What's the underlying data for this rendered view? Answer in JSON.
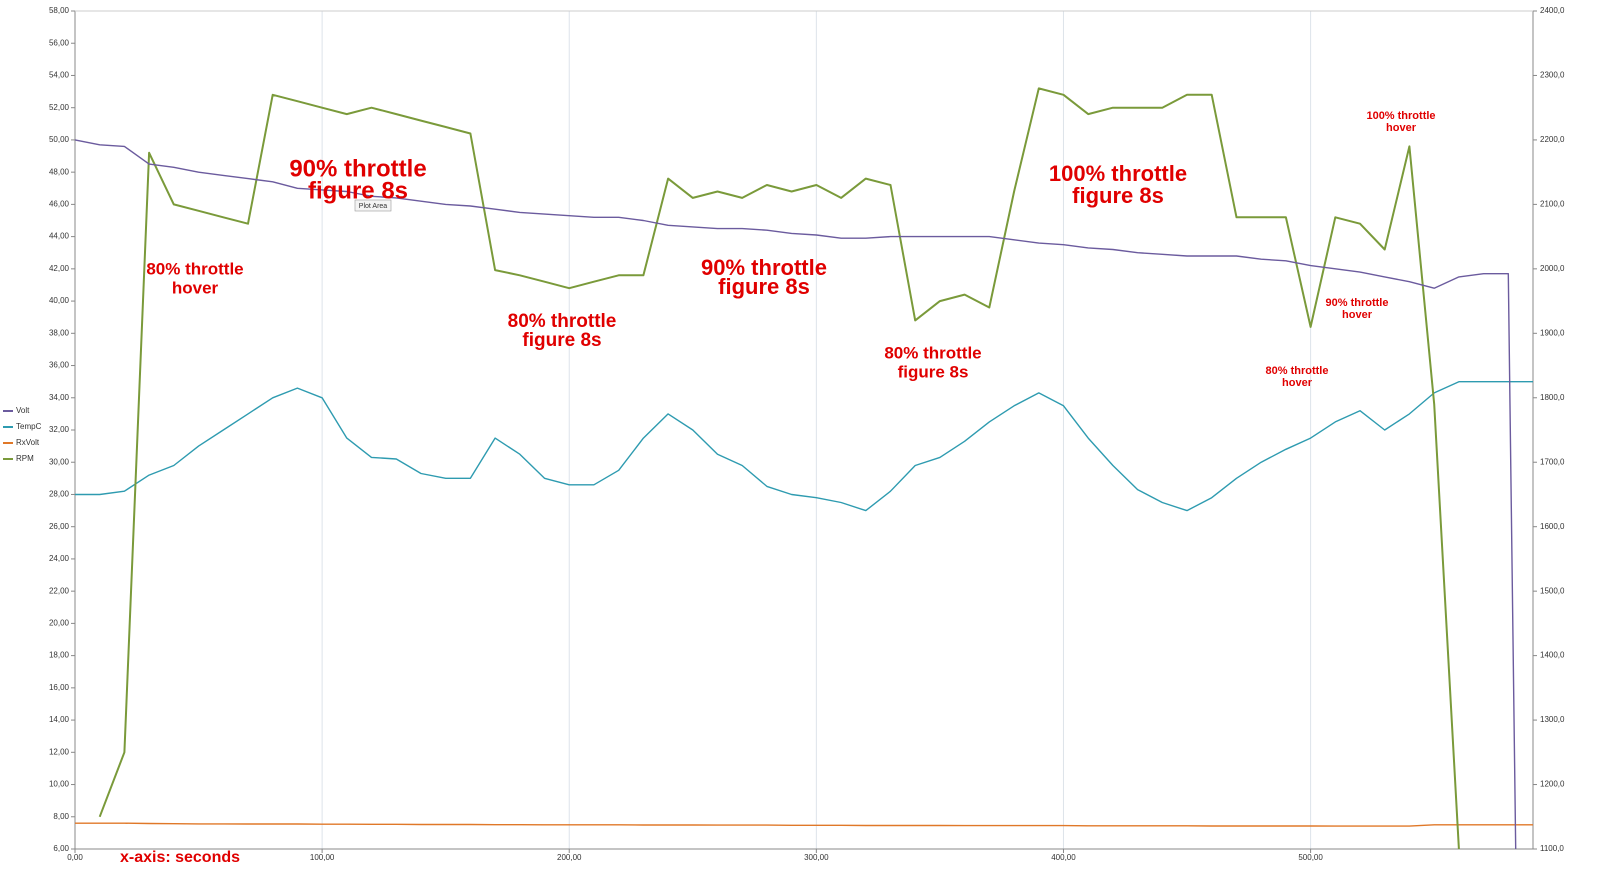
{
  "chart_data": {
    "type": "line",
    "x": [
      0,
      10,
      20,
      30,
      40,
      50,
      60,
      70,
      80,
      90,
      100,
      110,
      120,
      130,
      140,
      150,
      160,
      170,
      180,
      190,
      200,
      210,
      220,
      230,
      240,
      250,
      260,
      270,
      280,
      290,
      300,
      310,
      320,
      330,
      340,
      350,
      360,
      370,
      380,
      390,
      400,
      410,
      420,
      430,
      440,
      450,
      460,
      470,
      480,
      490,
      500,
      510,
      520,
      530,
      540,
      550,
      560,
      570,
      580,
      583,
      590
    ],
    "xlim": [
      0,
      590
    ],
    "xticks": [
      {
        "value": 0,
        "label": "0,00"
      },
      {
        "value": 100,
        "label": "100,00"
      },
      {
        "value": 200,
        "label": "200,00"
      },
      {
        "value": 300,
        "label": "300,00"
      },
      {
        "value": 400,
        "label": "400,00"
      },
      {
        "value": 500,
        "label": "500,00"
      }
    ],
    "ylim": [
      6,
      58
    ],
    "yticks": [
      {
        "value": 6,
        "label": "6,00"
      },
      {
        "value": 8,
        "label": "8,00"
      },
      {
        "value": 10,
        "label": "10,00"
      },
      {
        "value": 12,
        "label": "12,00"
      },
      {
        "value": 14,
        "label": "14,00"
      },
      {
        "value": 16,
        "label": "16,00"
      },
      {
        "value": 18,
        "label": "18,00"
      },
      {
        "value": 20,
        "label": "20,00"
      },
      {
        "value": 22,
        "label": "22,00"
      },
      {
        "value": 24,
        "label": "24,00"
      },
      {
        "value": 26,
        "label": "26,00"
      },
      {
        "value": 28,
        "label": "28,00"
      },
      {
        "value": 30,
        "label": "30,00"
      },
      {
        "value": 32,
        "label": "32,00"
      },
      {
        "value": 34,
        "label": "34,00"
      },
      {
        "value": 36,
        "label": "36,00"
      },
      {
        "value": 38,
        "label": "38,00"
      },
      {
        "value": 40,
        "label": "40,00"
      },
      {
        "value": 42,
        "label": "42,00"
      },
      {
        "value": 44,
        "label": "44,00"
      },
      {
        "value": 46,
        "label": "46,00"
      },
      {
        "value": 48,
        "label": "48,00"
      },
      {
        "value": 50,
        "label": "50,00"
      },
      {
        "value": 52,
        "label": "52,00"
      },
      {
        "value": 54,
        "label": "54,00"
      },
      {
        "value": 56,
        "label": "56,00"
      },
      {
        "value": 58,
        "label": "58,00"
      }
    ],
    "y2lim": [
      1100,
      2400
    ],
    "y2ticks": [
      {
        "value": 1100,
        "label": "1100,0"
      },
      {
        "value": 1200,
        "label": "1200,0"
      },
      {
        "value": 1300,
        "label": "1300,0"
      },
      {
        "value": 1400,
        "label": "1400,0"
      },
      {
        "value": 1500,
        "label": "1500,0"
      },
      {
        "value": 1600,
        "label": "1600,0"
      },
      {
        "value": 1700,
        "label": "1700,0"
      },
      {
        "value": 1800,
        "label": "1800,0"
      },
      {
        "value": 1900,
        "label": "1900,0"
      },
      {
        "value": 2000,
        "label": "2000,0"
      },
      {
        "value": 2100,
        "label": "2100,0"
      },
      {
        "value": 2200,
        "label": "2200,0"
      },
      {
        "value": 2300,
        "label": "2300,0"
      },
      {
        "value": 2400,
        "label": "2400,0"
      }
    ],
    "grid": "x",
    "legend": "left",
    "series": [
      {
        "name": "Volt",
        "color": "#6b5b9e",
        "values": [
          50,
          49.7,
          49.6,
          48.5,
          48.3,
          48,
          47.8,
          47.6,
          47.4,
          47,
          46.9,
          46.8,
          46.5,
          46.4,
          46.2,
          46,
          45.9,
          45.7,
          45.5,
          45.4,
          45.3,
          45.2,
          45.2,
          45,
          44.7,
          44.6,
          44.5,
          44.5,
          44.4,
          44.2,
          44.1,
          43.9,
          43.9,
          44,
          44,
          44,
          44,
          44,
          43.8,
          43.6,
          43.5,
          43.3,
          43.2,
          43,
          42.9,
          42.8,
          42.8,
          42.8,
          42.6,
          42.5,
          42.2,
          42,
          41.8,
          41.5,
          41.2,
          40.8,
          41.5,
          41.7,
          41.7,
          6,
          null
        ]
      },
      {
        "name": "TempC",
        "color": "#2e9bb0",
        "values": [
          28,
          28,
          28.2,
          29.2,
          29.8,
          31,
          32,
          33,
          34,
          34.6,
          34,
          31.5,
          30.3,
          30.2,
          29.3,
          29,
          29,
          31.5,
          30.5,
          29,
          28.6,
          28.6,
          29.5,
          31.5,
          33,
          32,
          30.5,
          29.8,
          28.5,
          28,
          27.8,
          27.5,
          27,
          28.2,
          29.8,
          30.3,
          31.3,
          32.5,
          33.5,
          34.3,
          33.5,
          31.5,
          29.8,
          28.3,
          27.5,
          27,
          27.8,
          29,
          30,
          30.8,
          31.5,
          32.5,
          33.2,
          32,
          33,
          34.3,
          35,
          35,
          35,
          35,
          35
        ]
      },
      {
        "name": "RxVolt",
        "color": "#e07828",
        "values": [
          7.6,
          7.6,
          7.6,
          7.58,
          7.57,
          7.56,
          7.56,
          7.55,
          7.55,
          7.55,
          7.54,
          7.54,
          7.53,
          7.53,
          7.52,
          7.52,
          7.52,
          7.51,
          7.51,
          7.5,
          7.5,
          7.5,
          7.5,
          7.49,
          7.49,
          7.49,
          7.48,
          7.48,
          7.48,
          7.47,
          7.47,
          7.47,
          7.46,
          7.46,
          7.46,
          7.46,
          7.45,
          7.45,
          7.45,
          7.45,
          7.45,
          7.44,
          7.44,
          7.44,
          7.44,
          7.44,
          7.43,
          7.43,
          7.43,
          7.43,
          7.43,
          7.42,
          7.42,
          7.42,
          7.42,
          7.5,
          7.5,
          7.5,
          7.5,
          7.5,
          7.5
        ]
      },
      {
        "name": "RPM",
        "color": "#7a9a3a",
        "axis": "y2",
        "values": [
          null,
          1150,
          1250,
          2180,
          2100,
          2090,
          2080,
          2070,
          2270,
          2260,
          2250,
          2240,
          2250,
          2240,
          2230,
          2220,
          2210,
          1998,
          1990,
          1980,
          1970,
          1980,
          1990,
          1990,
          2140,
          2110,
          2120,
          2110,
          2130,
          2120,
          2130,
          2110,
          2140,
          2130,
          1920,
          1950,
          1960,
          1940,
          2120,
          2280,
          2270,
          2240,
          2250,
          2250,
          2250,
          2270,
          2270,
          2080,
          2080,
          2080,
          1910,
          2080,
          2070,
          2030,
          2190,
          1790,
          1100,
          null,
          null,
          null,
          null
        ]
      }
    ],
    "annotations": [
      {
        "lines": [
          "80% throttle",
          "hover"
        ]
      },
      {
        "lines": [
          "90% throttle",
          "figure 8s"
        ]
      },
      {
        "lines": [
          "80% throttle",
          "figure 8s"
        ]
      },
      {
        "lines": [
          "90% throttle",
          "figure 8s"
        ]
      },
      {
        "lines": [
          "80% throttle",
          "figure 8s"
        ]
      },
      {
        "lines": [
          "100% throttle",
          "figure 8s"
        ]
      },
      {
        "lines": [
          "80% throttle",
          "hover"
        ]
      },
      {
        "lines": [
          "90% throttle",
          "hover"
        ]
      },
      {
        "lines": [
          "100% throttle",
          "hover"
        ]
      }
    ],
    "xlabel": "x-axis: seconds",
    "tooltip": "Plot Area"
  }
}
